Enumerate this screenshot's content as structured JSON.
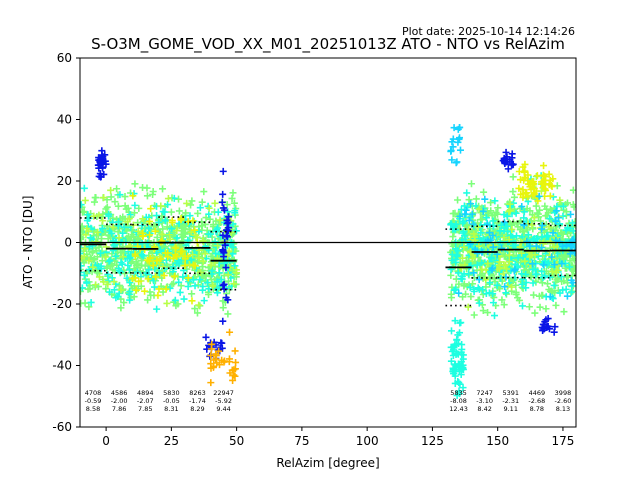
{
  "chart_data": {
    "type": "scatter",
    "title": "S-O3M_GOME_VOD_XX_M01_20251013Z ATO - NTO vs RelAzim",
    "plot_date": "Plot date: 2025-10-14 12:14:26",
    "xlabel": "RelAzim [degree]",
    "ylabel": "ATO - NTO [DU]",
    "xlim": [
      -10,
      180
    ],
    "ylim": [
      -60,
      60
    ],
    "x_ticks": [
      0,
      25,
      50,
      75,
      100,
      125,
      150,
      175
    ],
    "y_ticks": [
      -60,
      -40,
      -20,
      0,
      20,
      40,
      60
    ],
    "zero_line": 0,
    "marker": "+",
    "colors": {
      "dense": "#7dff7a",
      "cyan": "#1fffe1",
      "lightblue": "#16d4ff",
      "yellow": "#e8f50c",
      "orange": "#ffb000",
      "blue": "#0a16e6",
      "chartreuse": "#b7ff48",
      "line": "#000000"
    },
    "bins": [
      {
        "x0": -10,
        "x1": 0,
        "mean": -0.59,
        "std": 8.58
      },
      {
        "x0": 0,
        "x1": 10,
        "mean": -2.0,
        "std": 7.86
      },
      {
        "x0": 10,
        "x1": 20,
        "mean": -2.07,
        "std": 7.85
      },
      {
        "x0": 20,
        "x1": 30,
        "mean": -0.05,
        "std": 8.31
      },
      {
        "x0": 30,
        "x1": 40,
        "mean": -1.74,
        "std": 8.29
      },
      {
        "x0": 40,
        "x1": 50,
        "mean": -5.92,
        "std": 9.44
      },
      {
        "x0": 130,
        "x1": 140,
        "mean": -8.08,
        "std": 12.43
      },
      {
        "x0": 140,
        "x1": 150,
        "mean": -3.1,
        "std": 8.42
      },
      {
        "x0": 150,
        "x1": 160,
        "mean": -2.31,
        "std": 9.11
      },
      {
        "x0": 160,
        "x1": 170,
        "mean": -2.68,
        "std": 8.78
      },
      {
        "x0": 170,
        "x1": 180,
        "mean": -2.6,
        "std": 8.13
      }
    ],
    "stats": [
      {
        "x": -5,
        "count": "4708",
        "mean": "-0.59",
        "std": "8.58"
      },
      {
        "x": 5,
        "count": "4586",
        "mean": "-2.00",
        "std": "7.86"
      },
      {
        "x": 15,
        "count": "4894",
        "mean": "-2.07",
        "std": "7.85"
      },
      {
        "x": 25,
        "count": "5830",
        "mean": "-0.05",
        "std": "8.31"
      },
      {
        "x": 35,
        "count": "8263",
        "mean": "-1.74",
        "std": "8.29"
      },
      {
        "x": 45,
        "count": "22947",
        "mean": "-5.92",
        "std": "9.44"
      },
      {
        "x": 135,
        "count": "5835",
        "mean": "-8.08",
        "std": "12.43"
      },
      {
        "x": 145,
        "count": "7247",
        "mean": "-3.10",
        "std": "8.42"
      },
      {
        "x": 155,
        "count": "5391",
        "mean": "-2.31",
        "std": "9.11"
      },
      {
        "x": 165,
        "count": "4469",
        "mean": "-2.68",
        "std": "8.78"
      },
      {
        "x": 175,
        "count": "3998",
        "mean": "-2.60",
        "std": "8.13"
      }
    ],
    "point_clusters": [
      {
        "x_range": [
          -10,
          50
        ],
        "y_range": [
          -28,
          23
        ],
        "color": "dense",
        "count": 700
      },
      {
        "x_range": [
          -10,
          50
        ],
        "y_range": [
          -28,
          23
        ],
        "color": "cyan",
        "count": 260
      },
      {
        "x_range": [
          -10,
          50
        ],
        "y_range": [
          -30,
          28
        ],
        "color": "chartreuse",
        "count": 90
      },
      {
        "x_range": [
          10,
          35
        ],
        "y_range": [
          -28,
          22
        ],
        "color": "yellow",
        "count": 60
      },
      {
        "x_range": [
          -3,
          0
        ],
        "y_range": [
          19,
          32
        ],
        "color": "blue",
        "count": 35
      },
      {
        "x_range": [
          44,
          47
        ],
        "y_range": [
          -30,
          25
        ],
        "color": "blue",
        "count": 30
      },
      {
        "x_range": [
          38,
          45
        ],
        "y_range": [
          -40,
          -28
        ],
        "color": "blue",
        "count": 18
      },
      {
        "x_range": [
          40,
          50
        ],
        "y_range": [
          -48,
          -28
        ],
        "color": "orange",
        "count": 30
      },
      {
        "x_range": [
          132,
          180
        ],
        "y_range": [
          -28,
          24
        ],
        "color": "dense",
        "count": 700
      },
      {
        "x_range": [
          132,
          180
        ],
        "y_range": [
          -28,
          24
        ],
        "color": "cyan",
        "count": 260
      },
      {
        "x_range": [
          132,
          137
        ],
        "y_range": [
          -55,
          -20
        ],
        "color": "cyan",
        "count": 60
      },
      {
        "x_range": [
          132,
          136
        ],
        "y_range": [
          20,
          45
        ],
        "color": "lightblue",
        "count": 16
      },
      {
        "x_range": [
          158,
          172
        ],
        "y_range": [
          10,
          28
        ],
        "color": "yellow",
        "count": 60
      },
      {
        "x_range": [
          135,
          175
        ],
        "y_range": [
          -28,
          24
        ],
        "color": "chartreuse",
        "count": 90
      },
      {
        "x_range": [
          152,
          156
        ],
        "y_range": [
          22,
          32
        ],
        "color": "blue",
        "count": 20
      },
      {
        "x_range": [
          167,
          172
        ],
        "y_range": [
          -31,
          -24
        ],
        "color": "blue",
        "count": 16
      },
      {
        "x_range": [
          135,
          180
        ],
        "y_range": [
          -25,
          24
        ],
        "color": "lightblue",
        "count": 70
      }
    ]
  }
}
